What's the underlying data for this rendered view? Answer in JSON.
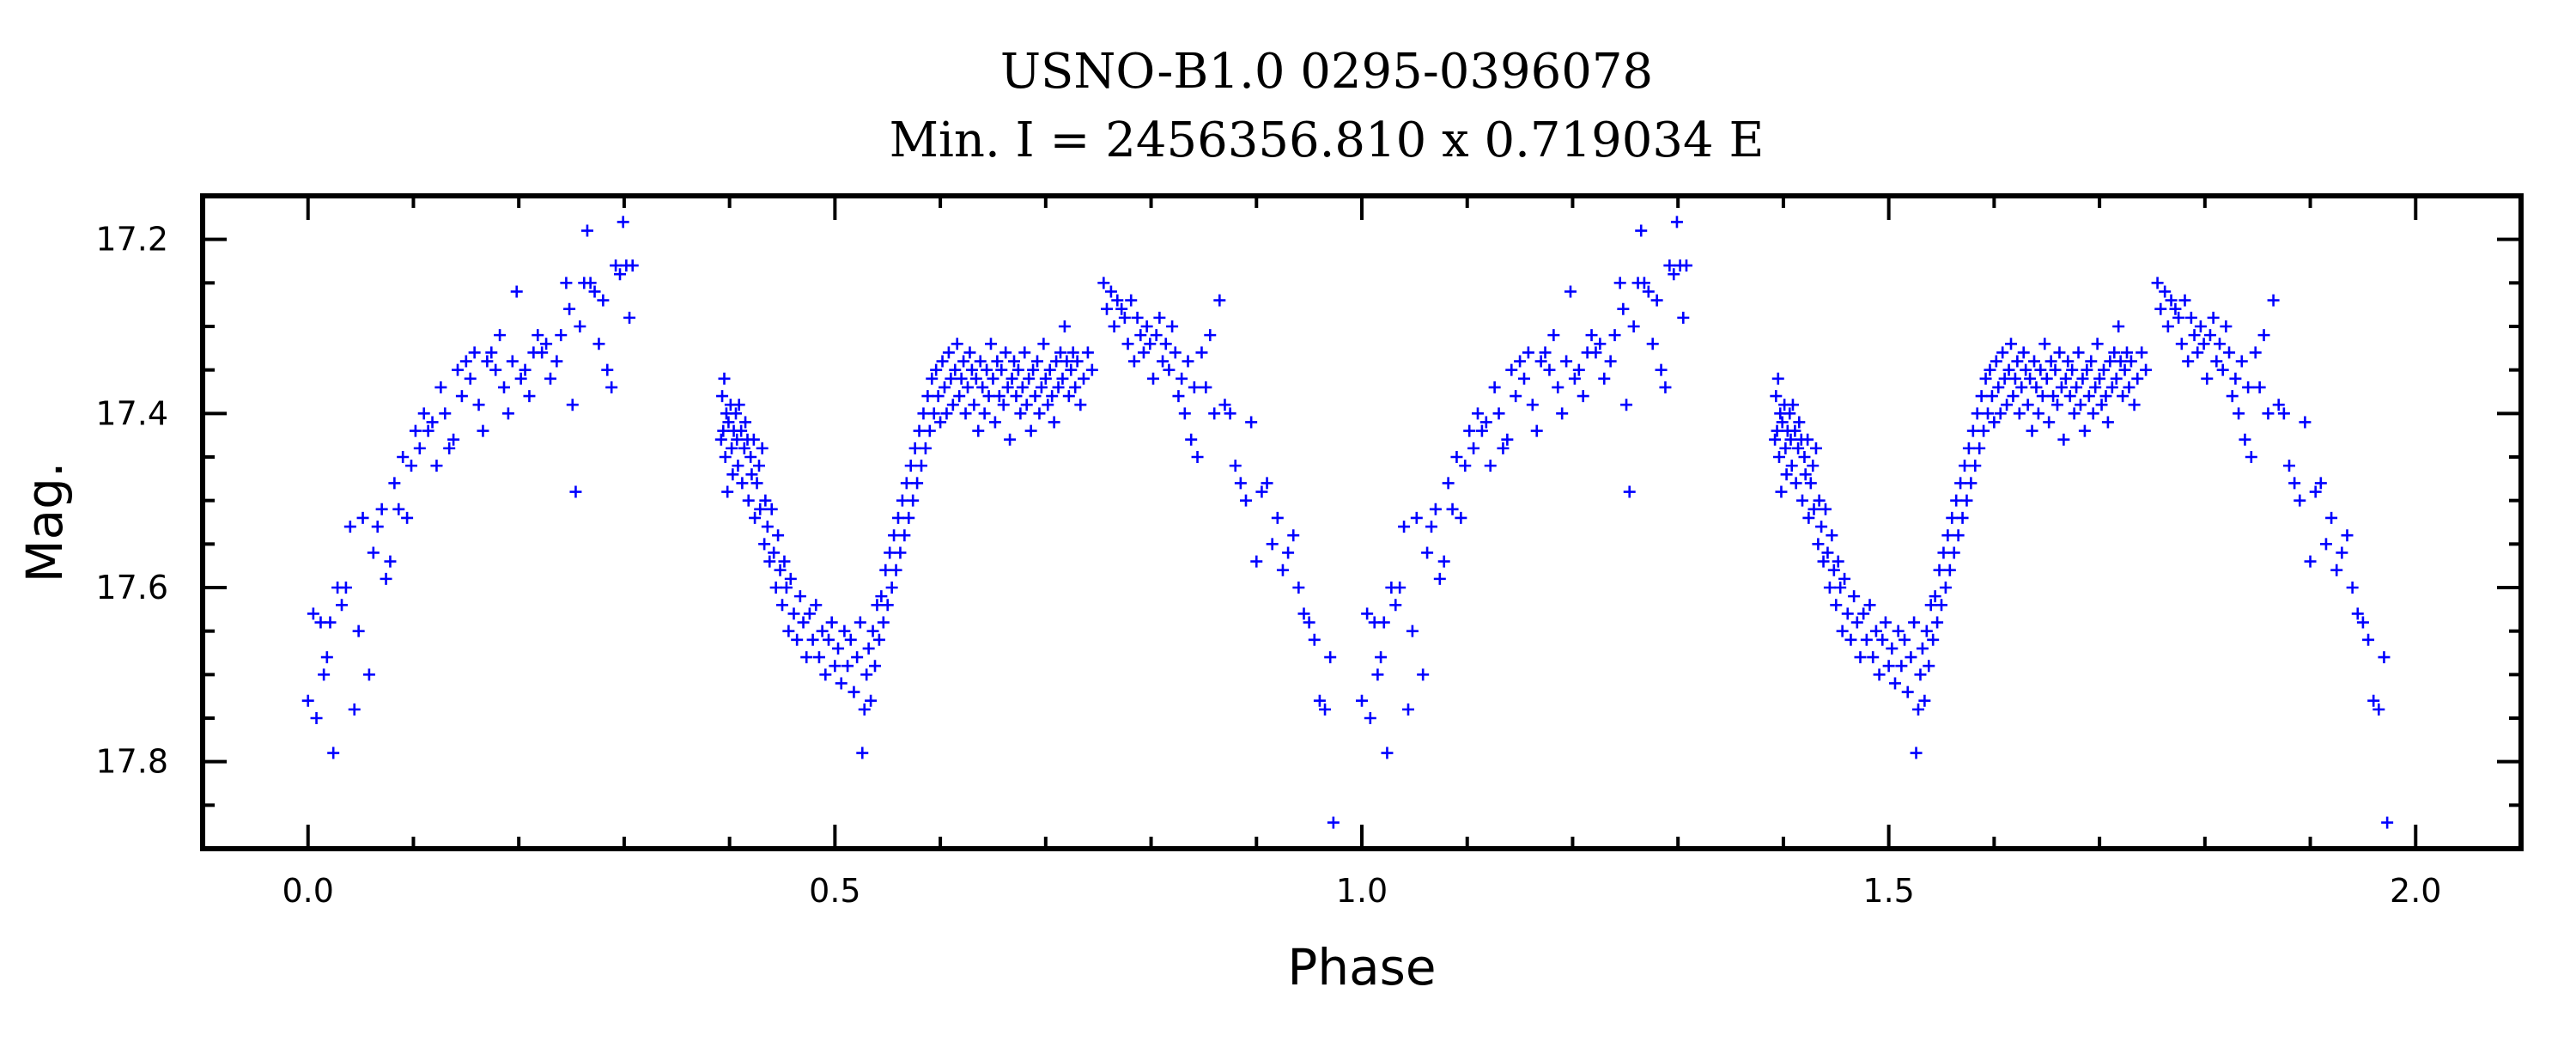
{
  "chart_data": {
    "type": "scatter",
    "title": "USNO-B1.0 0295-0396078",
    "subtitle": "Min. I = 2456356.810 x 0.719034 E",
    "xlabel": "Phase",
    "ylabel": "Mag.",
    "xlim": [
      -0.1,
      2.1
    ],
    "ylim": [
      17.9,
      17.15
    ],
    "y_inverted": true,
    "x_ticks": [
      "0.0",
      "0.5",
      "1.0",
      "1.5",
      "2.0"
    ],
    "y_ticks": [
      "17.2",
      "17.4",
      "17.6",
      "17.8"
    ],
    "marker": "+",
    "color": "#0000ff",
    "grid": false,
    "phase_repeat": 1.0,
    "series": [
      {
        "points": [
          [
            0.0,
            17.73
          ],
          [
            0.005,
            17.63
          ],
          [
            0.008,
            17.75
          ],
          [
            0.012,
            17.64
          ],
          [
            0.015,
            17.7
          ],
          [
            0.018,
            17.68
          ],
          [
            0.021,
            17.64
          ],
          [
            0.024,
            17.79
          ],
          [
            0.028,
            17.6
          ],
          [
            0.032,
            17.62
          ],
          [
            0.036,
            17.6
          ],
          [
            0.04,
            17.53
          ],
          [
            0.044,
            17.74
          ],
          [
            0.048,
            17.65
          ],
          [
            0.052,
            17.52
          ],
          [
            0.058,
            17.7
          ],
          [
            0.062,
            17.56
          ],
          [
            0.066,
            17.53
          ],
          [
            0.07,
            17.51
          ],
          [
            0.074,
            17.59
          ],
          [
            0.078,
            17.57
          ],
          [
            0.082,
            17.48
          ],
          [
            0.086,
            17.51
          ],
          [
            0.09,
            17.45
          ],
          [
            0.094,
            17.52
          ],
          [
            0.098,
            17.46
          ],
          [
            0.102,
            17.42
          ],
          [
            0.106,
            17.44
          ],
          [
            0.11,
            17.4
          ],
          [
            0.114,
            17.42
          ],
          [
            0.118,
            17.41
          ],
          [
            0.122,
            17.46
          ],
          [
            0.126,
            17.37
          ],
          [
            0.13,
            17.4
          ],
          [
            0.134,
            17.44
          ],
          [
            0.138,
            17.43
          ],
          [
            0.142,
            17.35
          ],
          [
            0.146,
            17.38
          ],
          [
            0.15,
            17.34
          ],
          [
            0.154,
            17.36
          ],
          [
            0.158,
            17.33
          ],
          [
            0.162,
            17.39
          ],
          [
            0.166,
            17.42
          ],
          [
            0.17,
            17.34
          ],
          [
            0.174,
            17.33
          ],
          [
            0.178,
            17.35
          ],
          [
            0.182,
            17.31
          ],
          [
            0.186,
            17.37
          ],
          [
            0.19,
            17.4
          ],
          [
            0.194,
            17.34
          ],
          [
            0.198,
            17.26
          ],
          [
            0.202,
            17.36
          ],
          [
            0.206,
            17.35
          ],
          [
            0.21,
            17.38
          ],
          [
            0.214,
            17.33
          ],
          [
            0.218,
            17.31
          ],
          [
            0.222,
            17.33
          ],
          [
            0.226,
            17.32
          ],
          [
            0.23,
            17.36
          ],
          [
            0.236,
            17.34
          ],
          [
            0.24,
            17.31
          ],
          [
            0.245,
            17.25
          ],
          [
            0.248,
            17.28
          ],
          [
            0.251,
            17.39
          ],
          [
            0.254,
            17.49
          ],
          [
            0.258,
            17.3
          ],
          [
            0.262,
            17.25
          ],
          [
            0.265,
            17.19
          ],
          [
            0.268,
            17.25
          ],
          [
            0.272,
            17.26
          ],
          [
            0.276,
            17.32
          ],
          [
            0.28,
            17.27
          ],
          [
            0.284,
            17.35
          ],
          [
            0.288,
            17.37
          ],
          [
            0.292,
            17.23
          ],
          [
            0.296,
            17.24
          ],
          [
            0.299,
            17.18
          ],
          [
            0.302,
            17.23
          ],
          [
            0.305,
            17.29
          ],
          [
            0.308,
            17.23
          ],
          [
            0.392,
            17.43
          ],
          [
            0.393,
            17.38
          ],
          [
            0.394,
            17.42
          ],
          [
            0.395,
            17.36
          ],
          [
            0.396,
            17.45
          ],
          [
            0.397,
            17.4
          ],
          [
            0.398,
            17.49
          ],
          [
            0.399,
            17.41
          ],
          [
            0.401,
            17.39
          ],
          [
            0.402,
            17.44
          ],
          [
            0.403,
            17.47
          ],
          [
            0.404,
            17.42
          ],
          [
            0.406,
            17.4
          ],
          [
            0.407,
            17.43
          ],
          [
            0.408,
            17.46
          ],
          [
            0.409,
            17.39
          ],
          [
            0.411,
            17.42
          ],
          [
            0.412,
            17.48
          ],
          [
            0.414,
            17.44
          ],
          [
            0.415,
            17.41
          ],
          [
            0.417,
            17.43
          ],
          [
            0.418,
            17.5
          ],
          [
            0.42,
            17.45
          ],
          [
            0.421,
            17.47
          ],
          [
            0.423,
            17.43
          ],
          [
            0.424,
            17.52
          ],
          [
            0.426,
            17.48
          ],
          [
            0.428,
            17.46
          ],
          [
            0.429,
            17.51
          ],
          [
            0.431,
            17.44
          ],
          [
            0.433,
            17.55
          ],
          [
            0.434,
            17.5
          ],
          [
            0.436,
            17.53
          ],
          [
            0.438,
            17.57
          ],
          [
            0.44,
            17.51
          ],
          [
            0.442,
            17.56
          ],
          [
            0.444,
            17.6
          ],
          [
            0.446,
            17.54
          ],
          [
            0.448,
            17.58
          ],
          [
            0.45,
            17.62
          ],
          [
            0.452,
            17.57
          ],
          [
            0.454,
            17.6
          ],
          [
            0.456,
            17.65
          ],
          [
            0.458,
            17.59
          ],
          [
            0.461,
            17.63
          ],
          [
            0.464,
            17.66
          ],
          [
            0.467,
            17.61
          ],
          [
            0.47,
            17.64
          ],
          [
            0.473,
            17.68
          ],
          [
            0.476,
            17.63
          ],
          [
            0.479,
            17.66
          ],
          [
            0.482,
            17.62
          ],
          [
            0.485,
            17.68
          ],
          [
            0.488,
            17.65
          ],
          [
            0.491,
            17.7
          ],
          [
            0.494,
            17.66
          ],
          [
            0.497,
            17.64
          ],
          [
            0.5,
            17.69
          ],
          [
            0.503,
            17.67
          ],
          [
            0.506,
            17.71
          ],
          [
            0.509,
            17.65
          ],
          [
            0.512,
            17.69
          ],
          [
            0.515,
            17.66
          ],
          [
            0.518,
            17.72
          ],
          [
            0.521,
            17.68
          ],
          [
            0.524,
            17.64
          ],
          [
            0.526,
            17.79
          ],
          [
            0.528,
            17.74
          ],
          [
            0.53,
            17.7
          ],
          [
            0.532,
            17.67
          ],
          [
            0.534,
            17.73
          ],
          [
            0.536,
            17.65
          ],
          [
            0.538,
            17.69
          ],
          [
            0.54,
            17.62
          ],
          [
            0.542,
            17.66
          ],
          [
            0.544,
            17.61
          ],
          [
            0.546,
            17.64
          ],
          [
            0.548,
            17.58
          ],
          [
            0.55,
            17.62
          ],
          [
            0.552,
            17.56
          ],
          [
            0.554,
            17.6
          ],
          [
            0.556,
            17.54
          ],
          [
            0.558,
            17.58
          ],
          [
            0.56,
            17.52
          ],
          [
            0.562,
            17.56
          ],
          [
            0.564,
            17.5
          ],
          [
            0.566,
            17.54
          ],
          [
            0.568,
            17.48
          ],
          [
            0.57,
            17.52
          ],
          [
            0.572,
            17.46
          ],
          [
            0.574,
            17.5
          ],
          [
            0.576,
            17.44
          ],
          [
            0.578,
            17.48
          ],
          [
            0.58,
            17.42
          ],
          [
            0.582,
            17.46
          ],
          [
            0.584,
            17.4
          ],
          [
            0.586,
            17.44
          ],
          [
            0.588,
            17.38
          ],
          [
            0.59,
            17.42
          ],
          [
            0.592,
            17.36
          ],
          [
            0.594,
            17.4
          ],
          [
            0.596,
            17.35
          ],
          [
            0.598,
            17.38
          ],
          [
            0.6,
            17.41
          ],
          [
            0.602,
            17.34
          ],
          [
            0.604,
            17.37
          ],
          [
            0.606,
            17.4
          ],
          [
            0.608,
            17.33
          ],
          [
            0.61,
            17.36
          ],
          [
            0.612,
            17.39
          ],
          [
            0.614,
            17.35
          ],
          [
            0.616,
            17.32
          ],
          [
            0.618,
            17.38
          ],
          [
            0.62,
            17.36
          ],
          [
            0.622,
            17.34
          ],
          [
            0.624,
            17.4
          ],
          [
            0.626,
            17.37
          ],
          [
            0.628,
            17.33
          ],
          [
            0.63,
            17.35
          ],
          [
            0.632,
            17.39
          ],
          [
            0.634,
            17.36
          ],
          [
            0.636,
            17.42
          ],
          [
            0.638,
            17.34
          ],
          [
            0.64,
            17.37
          ],
          [
            0.642,
            17.4
          ],
          [
            0.644,
            17.35
          ],
          [
            0.646,
            17.38
          ],
          [
            0.648,
            17.32
          ],
          [
            0.65,
            17.36
          ],
          [
            0.652,
            17.41
          ],
          [
            0.654,
            17.34
          ],
          [
            0.656,
            17.38
          ],
          [
            0.658,
            17.35
          ],
          [
            0.66,
            17.39
          ],
          [
            0.662,
            17.33
          ],
          [
            0.664,
            17.37
          ],
          [
            0.666,
            17.43
          ],
          [
            0.668,
            17.36
          ],
          [
            0.67,
            17.34
          ],
          [
            0.672,
            17.38
          ],
          [
            0.674,
            17.35
          ],
          [
            0.676,
            17.4
          ],
          [
            0.678,
            17.37
          ],
          [
            0.68,
            17.33
          ],
          [
            0.682,
            17.39
          ],
          [
            0.684,
            17.36
          ],
          [
            0.686,
            17.42
          ],
          [
            0.688,
            17.35
          ],
          [
            0.69,
            17.38
          ],
          [
            0.692,
            17.34
          ],
          [
            0.694,
            17.4
          ],
          [
            0.696,
            17.37
          ],
          [
            0.698,
            17.32
          ],
          [
            0.7,
            17.36
          ],
          [
            0.702,
            17.39
          ],
          [
            0.704,
            17.35
          ],
          [
            0.706,
            17.38
          ],
          [
            0.708,
            17.41
          ],
          [
            0.71,
            17.34
          ],
          [
            0.712,
            17.37
          ],
          [
            0.714,
            17.33
          ],
          [
            0.716,
            17.36
          ],
          [
            0.718,
            17.3
          ],
          [
            0.72,
            17.34
          ],
          [
            0.722,
            17.38
          ],
          [
            0.724,
            17.35
          ],
          [
            0.726,
            17.33
          ],
          [
            0.728,
            17.37
          ],
          [
            0.73,
            17.34
          ],
          [
            0.733,
            17.39
          ],
          [
            0.736,
            17.36
          ],
          [
            0.74,
            17.33
          ],
          [
            0.744,
            17.35
          ],
          [
            0.755,
            17.25
          ],
          [
            0.758,
            17.28
          ],
          [
            0.762,
            17.26
          ],
          [
            0.765,
            17.3
          ],
          [
            0.768,
            17.27
          ],
          [
            0.772,
            17.28
          ],
          [
            0.775,
            17.29
          ],
          [
            0.778,
            17.32
          ],
          [
            0.781,
            17.27
          ],
          [
            0.784,
            17.34
          ],
          [
            0.787,
            17.29
          ],
          [
            0.79,
            17.31
          ],
          [
            0.793,
            17.33
          ],
          [
            0.796,
            17.3
          ],
          [
            0.799,
            17.32
          ],
          [
            0.802,
            17.36
          ],
          [
            0.805,
            17.31
          ],
          [
            0.808,
            17.29
          ],
          [
            0.811,
            17.34
          ],
          [
            0.814,
            17.32
          ],
          [
            0.817,
            17.35
          ],
          [
            0.82,
            17.3
          ],
          [
            0.823,
            17.33
          ],
          [
            0.826,
            17.38
          ],
          [
            0.829,
            17.36
          ],
          [
            0.832,
            17.4
          ],
          [
            0.835,
            17.34
          ],
          [
            0.838,
            17.43
          ],
          [
            0.841,
            17.37
          ],
          [
            0.844,
            17.45
          ],
          [
            0.848,
            17.33
          ],
          [
            0.852,
            17.37
          ],
          [
            0.856,
            17.31
          ],
          [
            0.86,
            17.4
          ],
          [
            0.865,
            17.27
          ],
          [
            0.87,
            17.39
          ],
          [
            0.875,
            17.4
          ],
          [
            0.88,
            17.46
          ],
          [
            0.885,
            17.48
          ],
          [
            0.89,
            17.5
          ],
          [
            0.895,
            17.41
          ],
          [
            0.9,
            17.57
          ],
          [
            0.905,
            17.49
          ],
          [
            0.91,
            17.48
          ],
          [
            0.915,
            17.55
          ],
          [
            0.92,
            17.52
          ],
          [
            0.925,
            17.58
          ],
          [
            0.93,
            17.56
          ],
          [
            0.935,
            17.54
          ],
          [
            0.94,
            17.6
          ],
          [
            0.945,
            17.63
          ],
          [
            0.95,
            17.64
          ],
          [
            0.955,
            17.66
          ],
          [
            0.96,
            17.73
          ],
          [
            0.965,
            17.74
          ],
          [
            0.97,
            17.68
          ],
          [
            0.973,
            17.87
          ]
        ]
      }
    ]
  }
}
